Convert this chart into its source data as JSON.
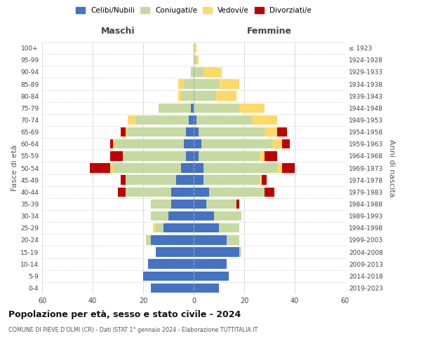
{
  "age_groups": [
    "0-4",
    "5-9",
    "10-14",
    "15-19",
    "20-24",
    "25-29",
    "30-34",
    "35-39",
    "40-44",
    "45-49",
    "50-54",
    "55-59",
    "60-64",
    "65-69",
    "70-74",
    "75-79",
    "80-84",
    "85-89",
    "90-94",
    "95-99",
    "100+"
  ],
  "birth_years": [
    "2019-2023",
    "2014-2018",
    "2009-2013",
    "2004-2008",
    "1999-2003",
    "1994-1998",
    "1989-1993",
    "1984-1988",
    "1979-1983",
    "1974-1978",
    "1969-1973",
    "1964-1968",
    "1959-1963",
    "1954-1958",
    "1949-1953",
    "1944-1948",
    "1939-1943",
    "1934-1938",
    "1929-1933",
    "1924-1928",
    "≤ 1923"
  ],
  "colors": {
    "celibi": "#4472c4",
    "coniugati": "#c5d9a0",
    "vedovi": "#ffd966",
    "divorziati": "#c00000"
  },
  "maschi": {
    "celibi": [
      17,
      20,
      18,
      15,
      17,
      12,
      10,
      9,
      9,
      7,
      5,
      3,
      4,
      3,
      2,
      1,
      0,
      0,
      0,
      0,
      0
    ],
    "coniugati": [
      0,
      0,
      0,
      0,
      2,
      3,
      7,
      8,
      18,
      20,
      27,
      25,
      27,
      23,
      21,
      13,
      5,
      4,
      1,
      0,
      0
    ],
    "vedovi": [
      0,
      0,
      0,
      0,
      0,
      1,
      0,
      0,
      0,
      0,
      1,
      0,
      1,
      1,
      3,
      0,
      1,
      2,
      0,
      0,
      0
    ],
    "divorziati": [
      0,
      0,
      0,
      0,
      0,
      0,
      0,
      0,
      3,
      2,
      8,
      5,
      1,
      2,
      0,
      0,
      0,
      0,
      0,
      0,
      0
    ]
  },
  "femmine": {
    "celibi": [
      10,
      14,
      13,
      18,
      13,
      10,
      8,
      5,
      6,
      4,
      4,
      2,
      3,
      2,
      1,
      0,
      0,
      0,
      0,
      0,
      0
    ],
    "coniugati": [
      0,
      0,
      0,
      1,
      5,
      8,
      11,
      12,
      22,
      22,
      29,
      24,
      28,
      26,
      22,
      18,
      9,
      10,
      4,
      1,
      0
    ],
    "vedovi": [
      0,
      0,
      0,
      0,
      0,
      0,
      0,
      0,
      0,
      1,
      2,
      2,
      4,
      5,
      10,
      10,
      8,
      8,
      7,
      1,
      1
    ],
    "divorziati": [
      0,
      0,
      0,
      0,
      0,
      0,
      0,
      1,
      4,
      2,
      5,
      5,
      3,
      4,
      0,
      0,
      0,
      0,
      0,
      0,
      0
    ]
  },
  "title": "Popolazione per età, sesso e stato civile - 2024",
  "subtitle": "COMUNE DI PIEVE D'OLMI (CR) - Dati ISTAT 1° gennaio 2024 - Elaborazione TUTTITALIA.IT",
  "xlabel_left": "Maschi",
  "xlabel_right": "Femmine",
  "ylabel_left": "Fasce di età",
  "ylabel_right": "Anni di nascita",
  "xlim": 60,
  "legend_labels": [
    "Celibi/Nubili",
    "Coniugati/e",
    "Vedovi/e",
    "Divorziati/e"
  ],
  "background_color": "#ffffff",
  "grid_color": "#cccccc"
}
